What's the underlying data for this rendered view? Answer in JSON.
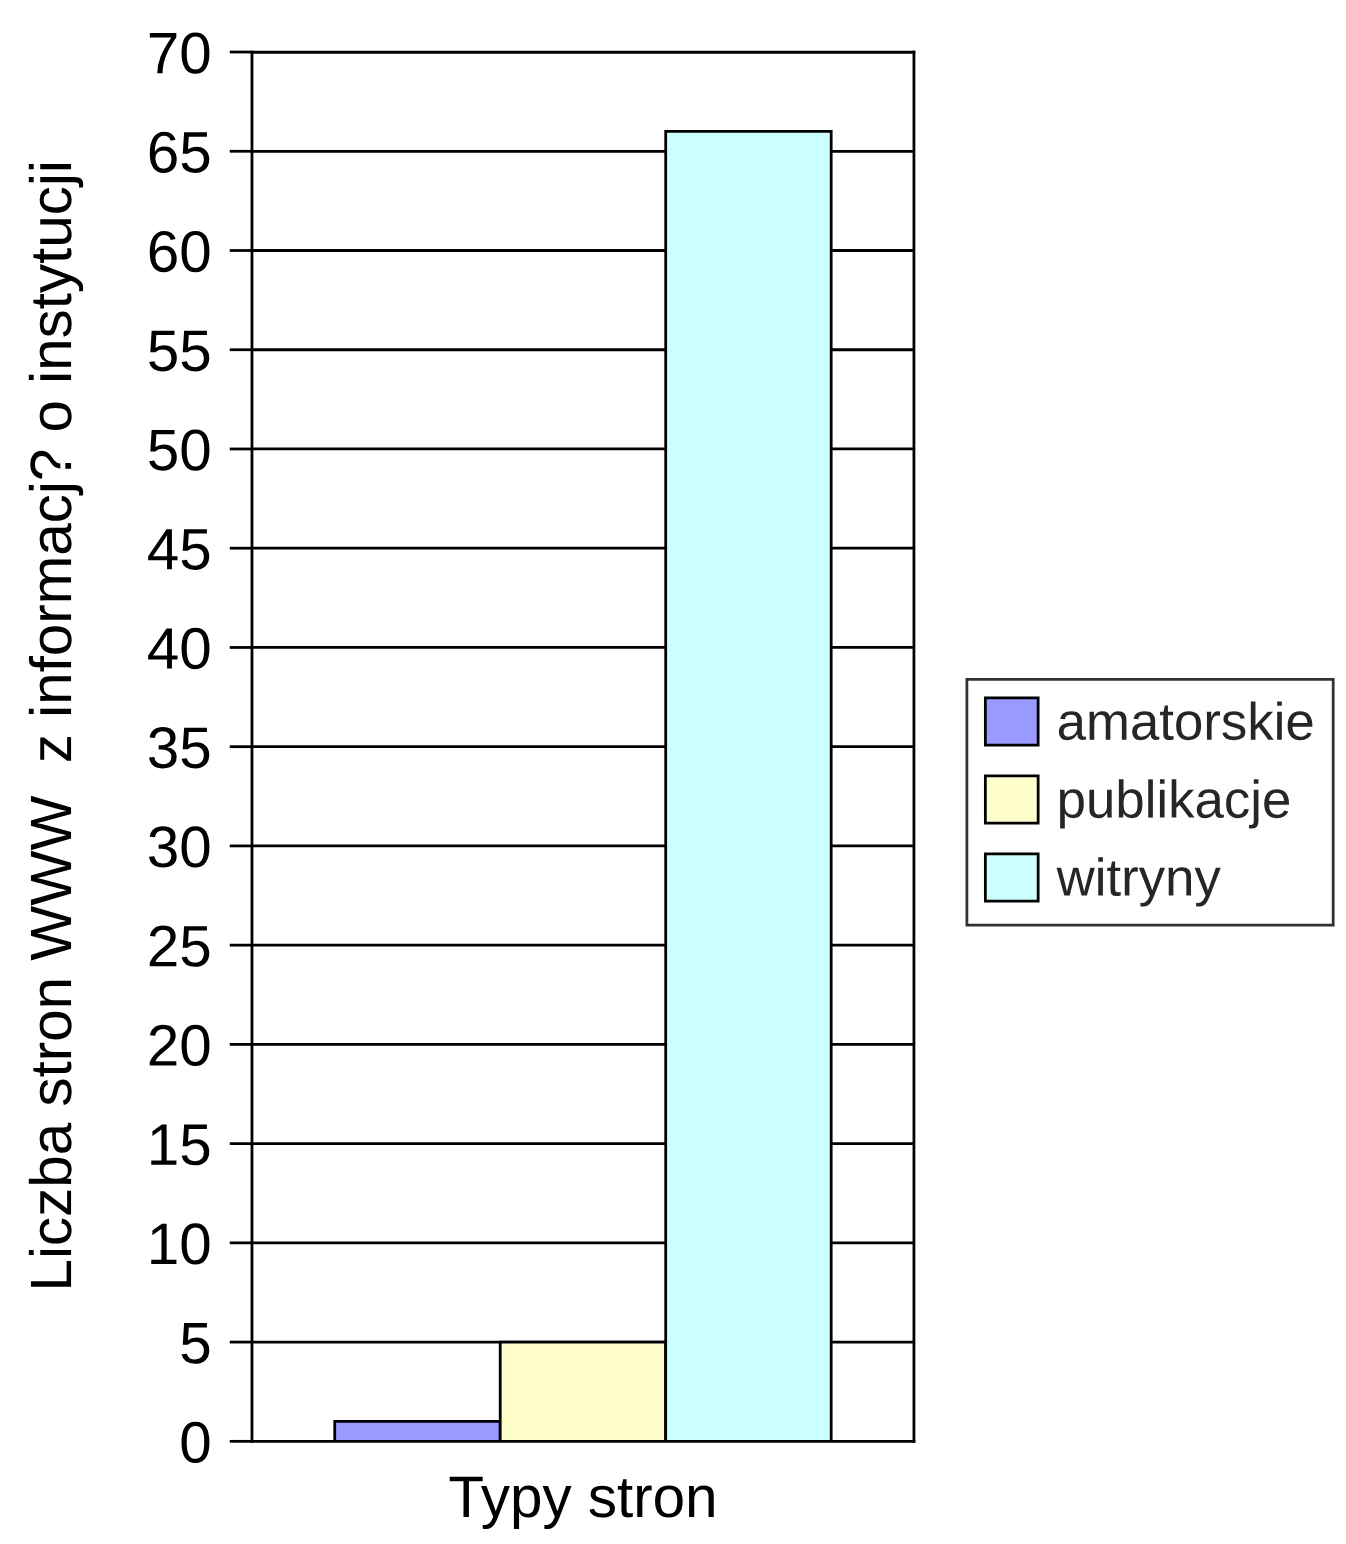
{
  "chart_data": {
    "type": "bar",
    "ylabel": "Liczba stron WWW  z informacj? o instytucji",
    "categories": [
      "Typy stron"
    ],
    "series": [
      {
        "name": "amatorskie",
        "color": "#9999ff",
        "values": [
          1
        ]
      },
      {
        "name": "publikacje",
        "color": "#ffffcc",
        "values": [
          5
        ]
      },
      {
        "name": "witryny",
        "color": "#ccffff",
        "values": [
          66
        ]
      }
    ],
    "ylim": [
      0,
      70
    ],
    "yticks": [
      0,
      5,
      10,
      15,
      20,
      25,
      30,
      35,
      40,
      45,
      50,
      55,
      60,
      65,
      70
    ],
    "grid": "y",
    "legend": "right"
  }
}
